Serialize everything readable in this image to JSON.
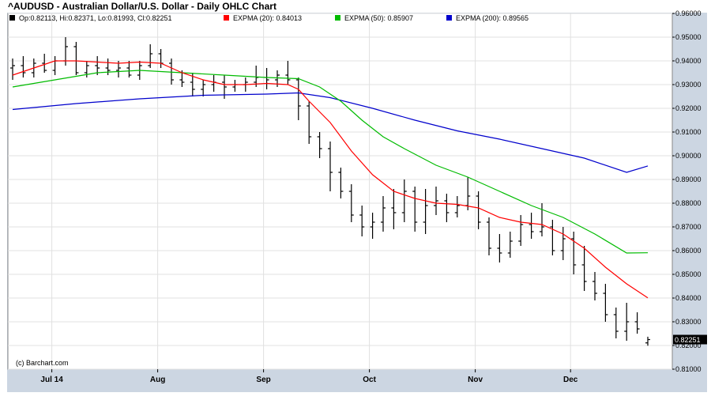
{
  "chart_data": {
    "type": "ohlc",
    "title": "^AUDUSD - Australian Dollar/U.S. Dollar - Daily OHLC Chart",
    "legend": {
      "ohlc": "Op:0.82113, Hi:0.82371, Lo:0.81993, Cl:0.82251",
      "ema20": "EXPMA (20): 0.84013",
      "ema50": "EXPMA (50): 0.85907",
      "ema200": "EXPMA (200): 0.89565"
    },
    "colors": {
      "price": "#000000",
      "ema20": "#ff0000",
      "ema50": "#00bb00",
      "ema200": "#0000cc",
      "frame_bg": "#ccd6e2",
      "plot_bg": "#ffffff",
      "grid": "#e0e0e0"
    },
    "credit": "(c) Barchart.com",
    "last_price_label": "0.82251",
    "x_labels": [
      {
        "label": "Jul 14",
        "index": 4
      },
      {
        "label": "Aug",
        "index": 14
      },
      {
        "label": "Sep",
        "index": 24
      },
      {
        "label": "Oct",
        "index": 34
      },
      {
        "label": "Nov",
        "index": 44
      },
      {
        "label": "Dec",
        "index": 53
      }
    ],
    "y_axis": {
      "min": 0.81,
      "max": 0.96,
      "ticks": [
        "0.81000",
        "0.82000",
        "0.83000",
        "0.84000",
        "0.85000",
        "0.86000",
        "0.87000",
        "0.88000",
        "0.89000",
        "0.90000",
        "0.91000",
        "0.92000",
        "0.93000",
        "0.94000",
        "0.95000",
        "0.96000"
      ]
    },
    "grid": true,
    "ohlc": [
      [
        0.937,
        0.941,
        0.932,
        0.938
      ],
      [
        0.938,
        0.942,
        0.933,
        0.935
      ],
      [
        0.935,
        0.941,
        0.933,
        0.939
      ],
      [
        0.939,
        0.943,
        0.935,
        0.936
      ],
      [
        0.936,
        0.942,
        0.934,
        0.94
      ],
      [
        0.94,
        0.95,
        0.938,
        0.946
      ],
      [
        0.946,
        0.948,
        0.934,
        0.935
      ],
      [
        0.935,
        0.94,
        0.933,
        0.938
      ],
      [
        0.938,
        0.942,
        0.934,
        0.937
      ],
      [
        0.937,
        0.941,
        0.934,
        0.936
      ],
      [
        0.936,
        0.94,
        0.933,
        0.937
      ],
      [
        0.937,
        0.94,
        0.933,
        0.934
      ],
      [
        0.934,
        0.94,
        0.932,
        0.938
      ],
      [
        0.938,
        0.947,
        0.937,
        0.943
      ],
      [
        0.943,
        0.945,
        0.937,
        0.939
      ],
      [
        0.939,
        0.941,
        0.93,
        0.932
      ],
      [
        0.932,
        0.936,
        0.929,
        0.931
      ],
      [
        0.931,
        0.935,
        0.925,
        0.928
      ],
      [
        0.928,
        0.932,
        0.925,
        0.93
      ],
      [
        0.93,
        0.934,
        0.927,
        0.931
      ],
      [
        0.931,
        0.934,
        0.924,
        0.929
      ],
      [
        0.929,
        0.932,
        0.927,
        0.93
      ],
      [
        0.93,
        0.933,
        0.927,
        0.931
      ],
      [
        0.931,
        0.938,
        0.929,
        0.933
      ],
      [
        0.933,
        0.937,
        0.928,
        0.932
      ],
      [
        0.932,
        0.936,
        0.929,
        0.934
      ],
      [
        0.934,
        0.94,
        0.93,
        0.932
      ],
      [
        0.932,
        0.933,
        0.915,
        0.921
      ],
      [
        0.921,
        0.923,
        0.905,
        0.908
      ],
      [
        0.908,
        0.91,
        0.899,
        0.903
      ],
      [
        0.903,
        0.906,
        0.885,
        0.893
      ],
      [
        0.893,
        0.895,
        0.882,
        0.885
      ],
      [
        0.885,
        0.888,
        0.872,
        0.875
      ],
      [
        0.875,
        0.879,
        0.866,
        0.87
      ],
      [
        0.87,
        0.876,
        0.865,
        0.872
      ],
      [
        0.872,
        0.883,
        0.868,
        0.878
      ],
      [
        0.878,
        0.886,
        0.869,
        0.876
      ],
      [
        0.876,
        0.89,
        0.872,
        0.885
      ],
      [
        0.885,
        0.887,
        0.868,
        0.872
      ],
      [
        0.872,
        0.886,
        0.867,
        0.879
      ],
      [
        0.879,
        0.887,
        0.875,
        0.881
      ],
      [
        0.881,
        0.884,
        0.872,
        0.876
      ],
      [
        0.876,
        0.883,
        0.874,
        0.879
      ],
      [
        0.879,
        0.891,
        0.877,
        0.883
      ],
      [
        0.883,
        0.885,
        0.869,
        0.872
      ],
      [
        0.872,
        0.874,
        0.858,
        0.861
      ],
      [
        0.861,
        0.867,
        0.855,
        0.859
      ],
      [
        0.859,
        0.868,
        0.857,
        0.864
      ],
      [
        0.864,
        0.875,
        0.862,
        0.871
      ],
      [
        0.871,
        0.876,
        0.865,
        0.868
      ],
      [
        0.868,
        0.88,
        0.866,
        0.87
      ],
      [
        0.87,
        0.873,
        0.858,
        0.86
      ],
      [
        0.86,
        0.87,
        0.856,
        0.865
      ],
      [
        0.865,
        0.868,
        0.85,
        0.854
      ],
      [
        0.854,
        0.862,
        0.843,
        0.847
      ],
      [
        0.847,
        0.851,
        0.839,
        0.842
      ],
      [
        0.842,
        0.846,
        0.83,
        0.833
      ],
      [
        0.833,
        0.836,
        0.823,
        0.826
      ],
      [
        0.826,
        0.838,
        0.822,
        0.83
      ],
      [
        0.83,
        0.834,
        0.825,
        0.827
      ],
      [
        0.8211,
        0.8237,
        0.8199,
        0.8225
      ]
    ],
    "ema20": [
      [
        0,
        0.934
      ],
      [
        2,
        0.937
      ],
      [
        4,
        0.94
      ],
      [
        6,
        0.94
      ],
      [
        8,
        0.9395
      ],
      [
        10,
        0.939
      ],
      [
        12,
        0.9395
      ],
      [
        14,
        0.939
      ],
      [
        16,
        0.935
      ],
      [
        18,
        0.932
      ],
      [
        20,
        0.93
      ],
      [
        22,
        0.93
      ],
      [
        24,
        0.9305
      ],
      [
        26,
        0.93
      ],
      [
        27,
        0.928
      ],
      [
        28,
        0.923
      ],
      [
        30,
        0.914
      ],
      [
        32,
        0.902
      ],
      [
        34,
        0.892
      ],
      [
        36,
        0.885
      ],
      [
        38,
        0.882
      ],
      [
        40,
        0.88
      ],
      [
        42,
        0.8795
      ],
      [
        44,
        0.878
      ],
      [
        46,
        0.874
      ],
      [
        48,
        0.872
      ],
      [
        50,
        0.871
      ],
      [
        52,
        0.867
      ],
      [
        54,
        0.861
      ],
      [
        56,
        0.853
      ],
      [
        58,
        0.846
      ],
      [
        60,
        0.8401
      ]
    ],
    "ema50": [
      [
        0,
        0.929
      ],
      [
        4,
        0.932
      ],
      [
        8,
        0.935
      ],
      [
        12,
        0.936
      ],
      [
        16,
        0.935
      ],
      [
        20,
        0.934
      ],
      [
        24,
        0.933
      ],
      [
        27,
        0.9325
      ],
      [
        29,
        0.929
      ],
      [
        31,
        0.923
      ],
      [
        33,
        0.915
      ],
      [
        35,
        0.908
      ],
      [
        37,
        0.903
      ],
      [
        40,
        0.896
      ],
      [
        43,
        0.891
      ],
      [
        46,
        0.885
      ],
      [
        49,
        0.879
      ],
      [
        52,
        0.874
      ],
      [
        55,
        0.867
      ],
      [
        58,
        0.859
      ],
      [
        60,
        0.8591
      ]
    ],
    "ema200": [
      [
        0,
        0.9195
      ],
      [
        6,
        0.922
      ],
      [
        12,
        0.924
      ],
      [
        18,
        0.9255
      ],
      [
        24,
        0.926
      ],
      [
        27,
        0.9265
      ],
      [
        30,
        0.9245
      ],
      [
        34,
        0.92
      ],
      [
        38,
        0.915
      ],
      [
        42,
        0.9105
      ],
      [
        46,
        0.907
      ],
      [
        50,
        0.903
      ],
      [
        54,
        0.899
      ],
      [
        58,
        0.893
      ],
      [
        60,
        0.8957
      ]
    ]
  }
}
